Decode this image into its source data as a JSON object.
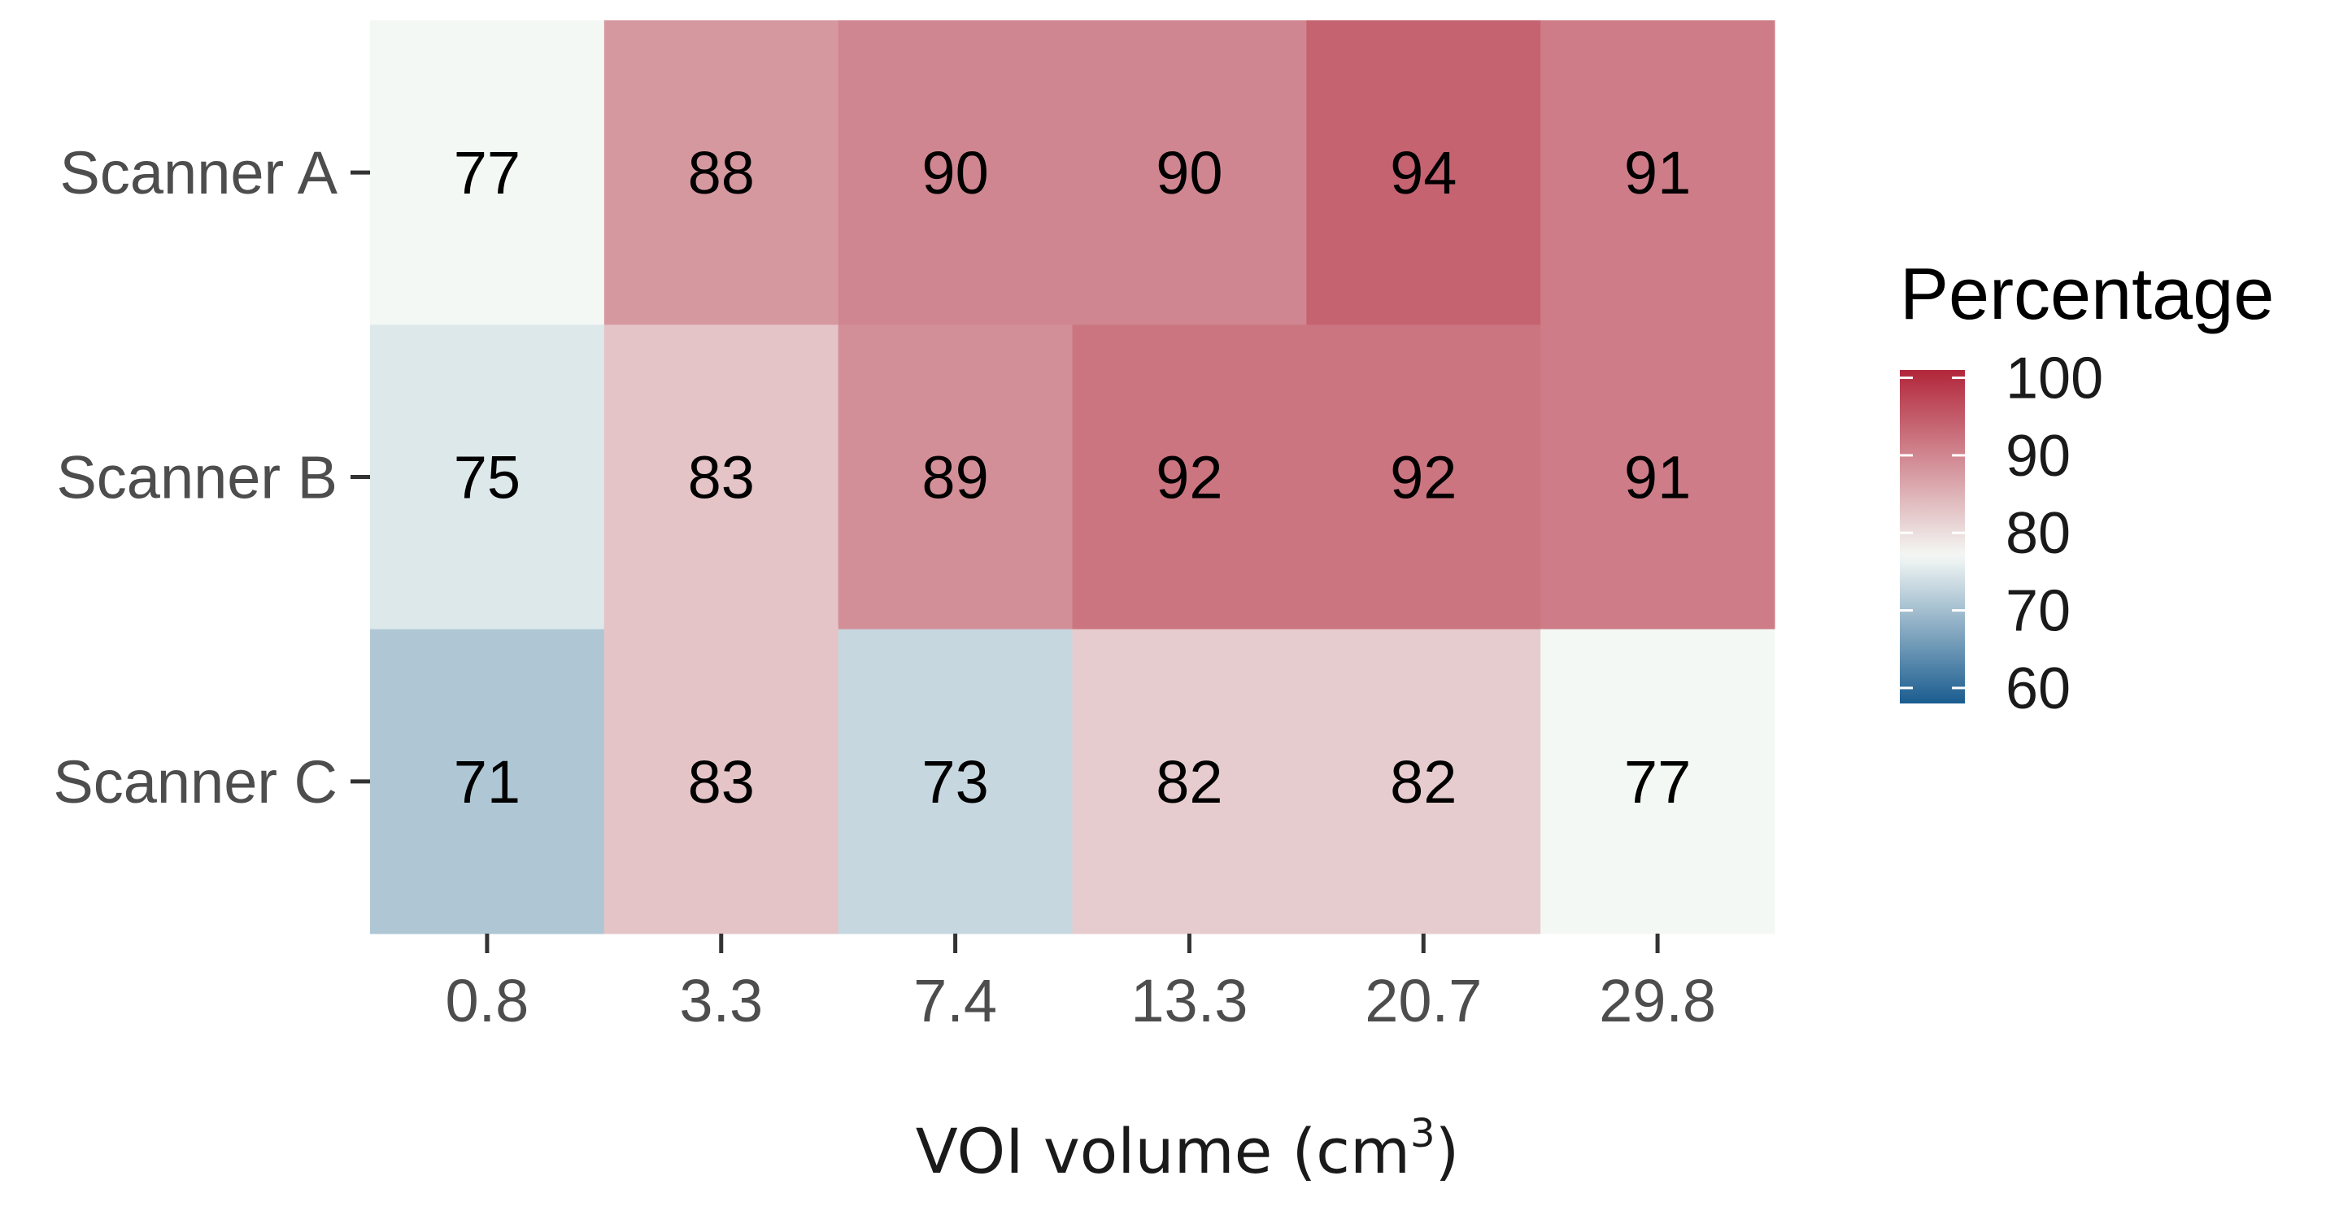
{
  "chart_data": {
    "type": "heatmap",
    "title": "",
    "xlabel": "VOI volume (cm",
    "xlabel_superscript": "3",
    "xlabel_suffix": ")",
    "ylabel": "",
    "x_categories": [
      "0.8",
      "3.3",
      "7.4",
      "13.3",
      "20.7",
      "29.8"
    ],
    "y_categories": [
      "Scanner A",
      "Scanner B",
      "Scanner C"
    ],
    "values": [
      [
        77,
        88,
        90,
        90,
        94,
        91
      ],
      [
        75,
        83,
        89,
        92,
        92,
        91
      ],
      [
        71,
        83,
        73,
        82,
        82,
        77
      ]
    ],
    "cell_labels": [
      [
        "77",
        "88",
        "90",
        "90",
        "94",
        "91"
      ],
      [
        "75",
        "83",
        "89",
        "92",
        "92",
        "91"
      ],
      [
        "71",
        "83",
        "73",
        "82",
        "82",
        "77"
      ]
    ],
    "legend": {
      "title": "Percentage",
      "placement": "right",
      "range": [
        58,
        101
      ],
      "ticks": [
        100,
        90,
        80,
        70,
        60
      ],
      "tick_labels": [
        "100",
        "90",
        "80",
        "70",
        "60"
      ],
      "color_low": "#1a5c8f",
      "color_mid": "#f4f8f5",
      "color_high": "#b2263a",
      "midpoint": 77
    }
  }
}
